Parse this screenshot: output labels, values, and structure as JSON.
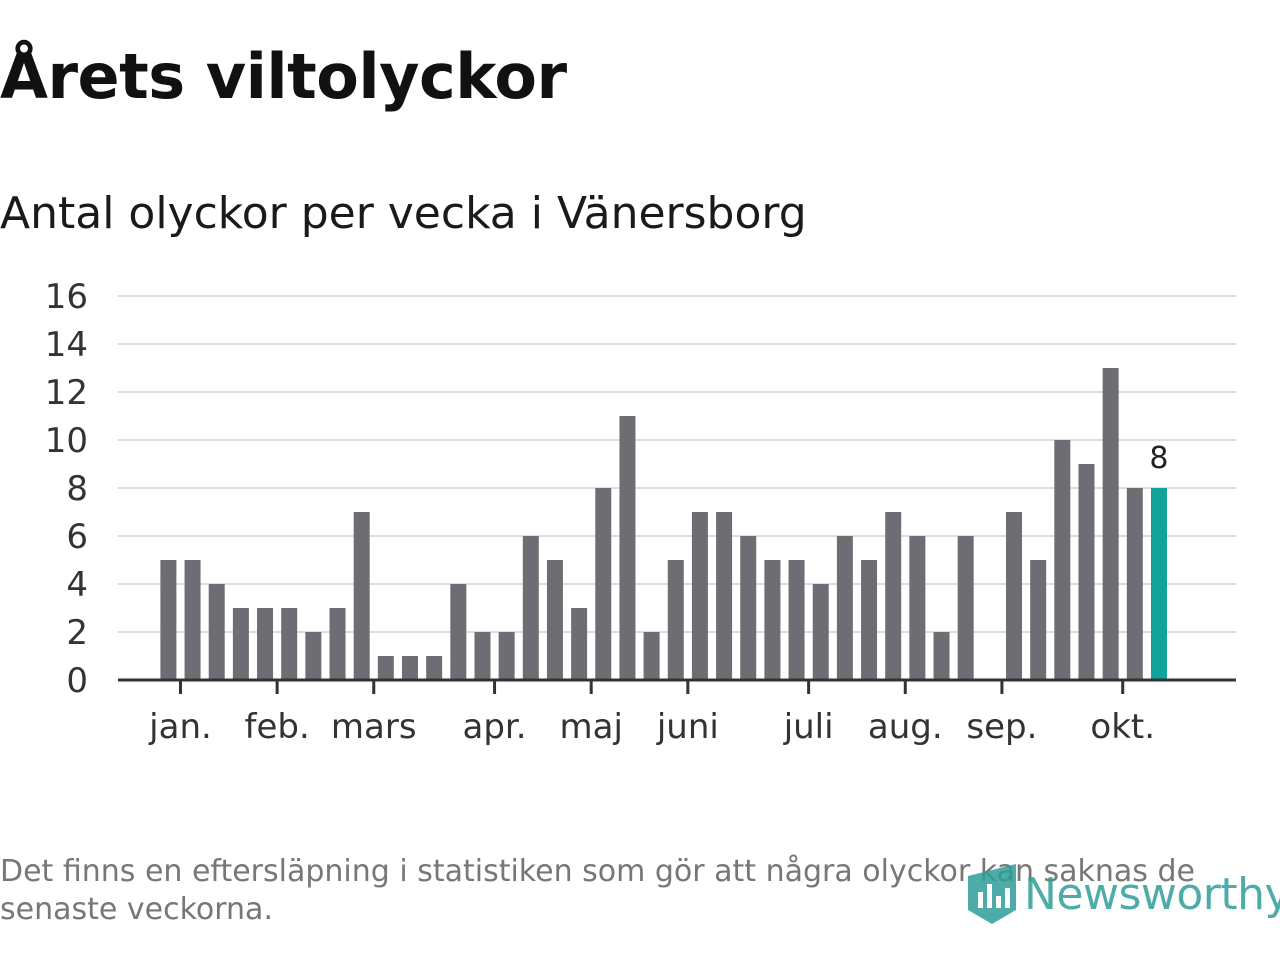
{
  "title": "Årets viltolyckor",
  "subtitle": "Antal olyckor per vecka i Vänersborg",
  "footnote": "Det finns en eftersläpning i statistiken som gör att några olyckor kan saknas de senaste veckorna.",
  "logo_text": "Newsworthy",
  "colors": {
    "bar": "#6e6d73",
    "highlight": "#0fa39b",
    "grid": "#dddddd",
    "axis": "#333333"
  },
  "chart_data": {
    "type": "bar",
    "title": "Antal olyckor per vecka i Vänersborg",
    "xlabel": "",
    "ylabel": "",
    "ylim": [
      0,
      16
    ],
    "y_ticks": [
      0,
      2,
      4,
      6,
      8,
      10,
      12,
      14,
      16
    ],
    "weeks": [
      1,
      2,
      3,
      4,
      5,
      6,
      7,
      8,
      9,
      10,
      11,
      12,
      13,
      14,
      15,
      16,
      17,
      18,
      19,
      20,
      21,
      22,
      23,
      24,
      25,
      26,
      27,
      28,
      29,
      30,
      31,
      32,
      33,
      34,
      35,
      36,
      37,
      38,
      39,
      40,
      41,
      42,
      43,
      44
    ],
    "values": [
      null,
      null,
      5,
      5,
      4,
      3,
      3,
      3,
      2,
      3,
      7,
      1,
      1,
      1,
      4,
      2,
      2,
      6,
      5,
      3,
      8,
      11,
      2,
      5,
      7,
      7,
      6,
      5,
      5,
      4,
      6,
      5,
      7,
      6,
      2,
      6,
      0,
      7,
      5,
      10,
      9,
      13,
      8,
      8
    ],
    "highlight_index": 43,
    "highlight_label": "8",
    "month_labels": [
      {
        "label": "jan.",
        "week": 3.5
      },
      {
        "label": "feb.",
        "week": 7.5
      },
      {
        "label": "mars",
        "week": 11.5
      },
      {
        "label": "apr.",
        "week": 16.5
      },
      {
        "label": "maj",
        "week": 20.5
      },
      {
        "label": "juni",
        "week": 24.5
      },
      {
        "label": "juli",
        "week": 29.5
      },
      {
        "label": "aug.",
        "week": 33.5
      },
      {
        "label": "sep.",
        "week": 37.5
      },
      {
        "label": "okt.",
        "week": 42.5
      }
    ]
  }
}
